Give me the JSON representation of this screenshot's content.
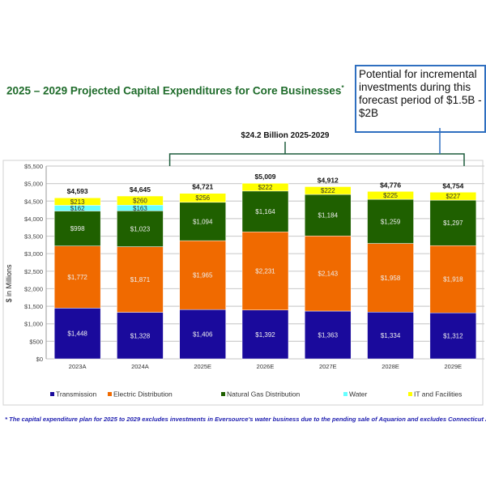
{
  "chart_data": {
    "type": "bar",
    "stacked": true,
    "title": "2025 – 2029 Projected Capital Expenditures for Core Businesses",
    "title_marker": "*",
    "ylabel": "$ in Millions",
    "xlabel": "",
    "ylim": [
      0,
      5500
    ],
    "yticks": [
      "$0",
      "$500",
      "$1,000",
      "$1,500",
      "$2,000",
      "$2,500",
      "$3,000",
      "$3,500",
      "$4,000",
      "$4,500",
      "$5,000",
      "$5,500"
    ],
    "grid": true,
    "legend_position": "bottom",
    "categories": [
      "2023A",
      "2024A",
      "2025E",
      "2026E",
      "2027E",
      "2028E",
      "2029E"
    ],
    "series": [
      {
        "name": "Transmission",
        "color": "#1a0a9c",
        "values": [
          1448,
          1328,
          1406,
          1392,
          1363,
          1334,
          1312
        ],
        "labels": [
          "$1,448",
          "$1,328",
          "$1,406",
          "$1,392",
          "$1,363",
          "$1,334",
          "$1,312"
        ]
      },
      {
        "name": "Electric Distribution",
        "color": "#f06a00",
        "values": [
          1772,
          1871,
          1965,
          2231,
          2143,
          1958,
          1918
        ],
        "labels": [
          "$1,772",
          "$1,871",
          "$1,965",
          "$2,231",
          "$2,143",
          "$1,958",
          "$1,918"
        ]
      },
      {
        "name": "Natural Gas Distribution",
        "color": "#1f6000",
        "values": [
          998,
          1023,
          1094,
          1164,
          1184,
          1259,
          1297
        ],
        "labels": [
          "$998",
          "$1,023",
          "$1,094",
          "$1,164",
          "$1,184",
          "$1,259",
          "$1,297"
        ]
      },
      {
        "name": "Water",
        "color": "#66ffff",
        "values": [
          162,
          163,
          0,
          0,
          0,
          0,
          0
        ],
        "labels": [
          "$162",
          "$163",
          "",
          "",
          "",
          "",
          ""
        ]
      },
      {
        "name": "IT and Facilities",
        "color": "#ffff00",
        "values": [
          213,
          260,
          256,
          222,
          222,
          225,
          227
        ],
        "labels": [
          "$213",
          "$260",
          "$256",
          "$222",
          "$222",
          "$225",
          "$227"
        ]
      }
    ],
    "totals": [
      "$4,593",
      "$4,645",
      "$4,721",
      "$5,009",
      "$4,912",
      "$4,776",
      "$4,754"
    ],
    "annotations": {
      "bracket_label": "$24.2 Billion 2025-2029",
      "callout": "Potential for incremental investments during this forecast period of $1.5B - $2B"
    }
  },
  "footnote": "* The capital expenditure plan for 2025 to 2029 excludes investments  in Eversource's  water business  due to the pending sale of Aquarion and excludes Connecticut  AMI."
}
